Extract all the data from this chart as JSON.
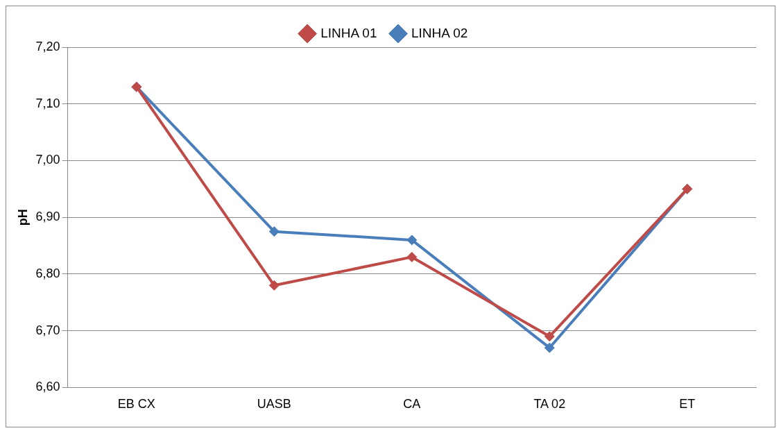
{
  "chart_data": {
    "type": "line",
    "ylabel": "pH",
    "categories": [
      "EB CX",
      "UASB",
      "CA",
      "TA 02",
      "ET"
    ],
    "series": [
      {
        "name": "LINHA 01",
        "color": "#be4b48",
        "values": [
          7.13,
          6.78,
          6.83,
          6.69,
          6.95
        ]
      },
      {
        "name": "LINHA 02",
        "color": "#4a7ebb",
        "values": [
          7.13,
          6.875,
          6.86,
          6.67,
          6.95
        ]
      }
    ],
    "ylim": [
      6.6,
      7.2
    ],
    "yticks": [
      {
        "value": 6.6,
        "label": "6,60"
      },
      {
        "value": 6.7,
        "label": "6,70"
      },
      {
        "value": 6.8,
        "label": "6,80"
      },
      {
        "value": 6.9,
        "label": "6,90"
      },
      {
        "value": 7.0,
        "label": "7,00"
      },
      {
        "value": 7.1,
        "label": "7,10"
      },
      {
        "value": 7.2,
        "label": "7,20"
      }
    ],
    "grid": "y",
    "legend": "top",
    "marker": "diamond",
    "line_style": "solid"
  }
}
